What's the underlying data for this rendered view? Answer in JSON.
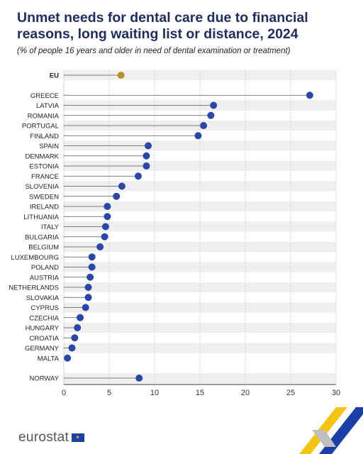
{
  "header": {
    "title": "Unmet needs for dental care due to financial reasons, long waiting list or distance, 2024",
    "subtitle": "(% of people 16 years and older in need of dental examination or treatment)"
  },
  "footer": {
    "logo_text": "eurostat"
  },
  "colors": {
    "highlight_dot": "#b8902a",
    "country_dot": "#2a46a6",
    "band": "#efefef",
    "grid": "#c8c8c8",
    "stem": "#555555"
  },
  "chart_data": {
    "type": "lollipop",
    "orientation": "horizontal",
    "xlim": [
      0,
      30
    ],
    "xticks": [
      0,
      5,
      10,
      15,
      20,
      25,
      30
    ],
    "grid": true,
    "rows": [
      {
        "label": "EU",
        "value": 6.3,
        "group": "eu"
      },
      {
        "label": "GREECE",
        "value": 27.1,
        "group": "country"
      },
      {
        "label": "LATVIA",
        "value": 16.5,
        "group": "country"
      },
      {
        "label": "ROMANIA",
        "value": 16.2,
        "group": "country"
      },
      {
        "label": "PORTUGAL",
        "value": 15.4,
        "group": "country"
      },
      {
        "label": "FINLAND",
        "value": 14.8,
        "group": "country"
      },
      {
        "label": "SPAIN",
        "value": 9.3,
        "group": "country"
      },
      {
        "label": "DENMARK",
        "value": 9.1,
        "group": "country"
      },
      {
        "label": "ESTONIA",
        "value": 9.1,
        "group": "country"
      },
      {
        "label": "FRANCE",
        "value": 8.2,
        "group": "country"
      },
      {
        "label": "SLOVENIA",
        "value": 6.4,
        "group": "country"
      },
      {
        "label": "SWEDEN",
        "value": 5.8,
        "group": "country"
      },
      {
        "label": "IRELAND",
        "value": 4.8,
        "group": "country"
      },
      {
        "label": "LITHUANIA",
        "value": 4.8,
        "group": "country"
      },
      {
        "label": "ITALY",
        "value": 4.6,
        "group": "country"
      },
      {
        "label": "BULGARIA",
        "value": 4.5,
        "group": "country"
      },
      {
        "label": "BELGIUM",
        "value": 4.0,
        "group": "country"
      },
      {
        "label": "LUXEMBOURG",
        "value": 3.1,
        "group": "country"
      },
      {
        "label": "POLAND",
        "value": 3.1,
        "group": "country"
      },
      {
        "label": "AUSTRIA",
        "value": 2.9,
        "group": "country"
      },
      {
        "label": "NETHERLANDS",
        "value": 2.7,
        "group": "country"
      },
      {
        "label": "SLOVAKIA",
        "value": 2.7,
        "group": "country"
      },
      {
        "label": "CYPRUS",
        "value": 2.4,
        "group": "country"
      },
      {
        "label": "CZECHIA",
        "value": 1.8,
        "group": "country"
      },
      {
        "label": "HUNGARY",
        "value": 1.5,
        "group": "country"
      },
      {
        "label": "CROATIA",
        "value": 1.2,
        "group": "country"
      },
      {
        "label": "GERMANY",
        "value": 0.9,
        "group": "country"
      },
      {
        "label": "MALTA",
        "value": 0.4,
        "group": "country"
      },
      {
        "label": "NORWAY",
        "value": 8.3,
        "group": "non-eu"
      }
    ]
  }
}
